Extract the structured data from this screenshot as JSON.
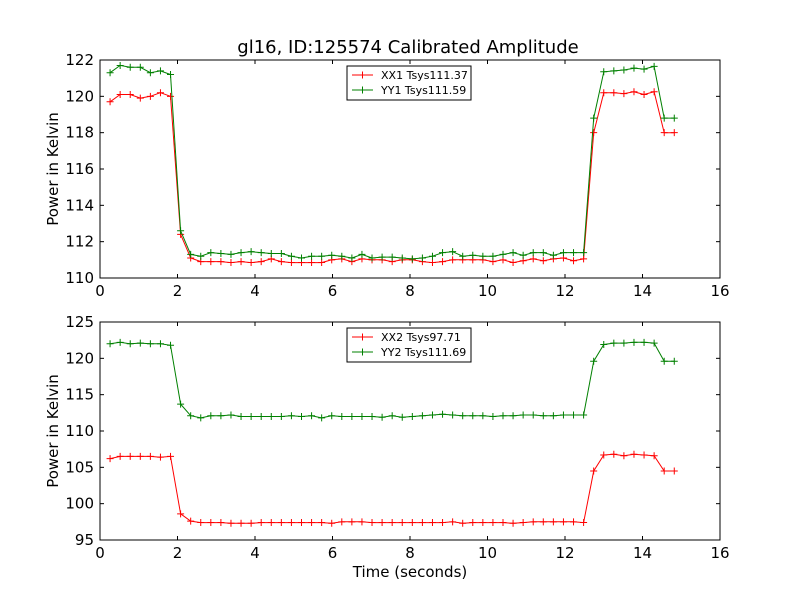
{
  "chart_data": [
    {
      "type": "line",
      "title": "gl16, ID:125574 Calibrated Amplitude",
      "xlabel": "",
      "ylabel": "Power in Kelvin",
      "xlim": [
        0,
        16
      ],
      "ylim": [
        110,
        122
      ],
      "xticks": [
        "0",
        "2",
        "4",
        "6",
        "8",
        "10",
        "12",
        "14",
        "16"
      ],
      "yticks": [
        "110",
        "112",
        "114",
        "116",
        "118",
        "120",
        "122"
      ],
      "legend_position": "upper center",
      "x": [
        0.26,
        0.52,
        0.78,
        1.04,
        1.3,
        1.56,
        1.82,
        2.08,
        2.34,
        2.6,
        2.86,
        3.12,
        3.38,
        3.64,
        3.9,
        4.16,
        4.42,
        4.68,
        4.94,
        5.2,
        5.46,
        5.72,
        5.98,
        6.24,
        6.5,
        6.76,
        7.02,
        7.28,
        7.54,
        7.8,
        8.06,
        8.32,
        8.58,
        8.84,
        9.1,
        9.36,
        9.62,
        9.88,
        10.14,
        10.4,
        10.66,
        10.92,
        11.18,
        11.44,
        11.7,
        11.96,
        12.22,
        12.48,
        12.74,
        13.0,
        13.26,
        13.52,
        13.78,
        14.04,
        14.3,
        14.56,
        14.82
      ],
      "series": [
        {
          "name": "XX1 Tsys111.37",
          "color": "#ff0000",
          "values": [
            119.7,
            120.1,
            120.1,
            119.9,
            120.0,
            120.2,
            120.0,
            112.4,
            111.1,
            110.9,
            110.9,
            110.9,
            110.85,
            110.9,
            110.85,
            110.9,
            111.05,
            110.9,
            110.85,
            110.85,
            110.85,
            110.85,
            111.0,
            111.05,
            110.9,
            111.05,
            111.0,
            111.0,
            110.9,
            111.0,
            111.0,
            110.9,
            110.85,
            110.9,
            111.0,
            111.0,
            111.0,
            111.0,
            110.9,
            111.0,
            110.85,
            110.95,
            111.05,
            110.95,
            111.05,
            111.1,
            110.95,
            111.05,
            118.0,
            120.2,
            120.2,
            120.15,
            120.25,
            120.1,
            120.25,
            118.0,
            118.0
          ],
          "marker": "+"
        },
        {
          "name": "YY1 Tsys111.59",
          "color": "#008000",
          "values": [
            121.3,
            121.7,
            121.6,
            121.6,
            121.3,
            121.4,
            121.2,
            112.6,
            111.3,
            111.2,
            111.4,
            111.35,
            111.3,
            111.4,
            111.45,
            111.4,
            111.35,
            111.35,
            111.2,
            111.1,
            111.2,
            111.2,
            111.25,
            111.2,
            111.1,
            111.3,
            111.1,
            111.15,
            111.15,
            111.1,
            111.05,
            111.1,
            111.2,
            111.4,
            111.45,
            111.2,
            111.25,
            111.2,
            111.2,
            111.3,
            111.4,
            111.25,
            111.4,
            111.4,
            111.25,
            111.4,
            111.4,
            111.4,
            118.8,
            121.35,
            121.4,
            121.45,
            121.55,
            121.5,
            121.65,
            118.8,
            118.8
          ],
          "marker": "+"
        }
      ]
    },
    {
      "type": "line",
      "title": "",
      "xlabel": "Time (seconds)",
      "ylabel": "Power in Kelvin",
      "xlim": [
        0,
        16
      ],
      "ylim": [
        95,
        125
      ],
      "xticks": [
        "0",
        "2",
        "4",
        "6",
        "8",
        "10",
        "12",
        "14",
        "16"
      ],
      "yticks": [
        "95",
        "100",
        "105",
        "110",
        "115",
        "120",
        "125"
      ],
      "legend_position": "upper center",
      "x": [
        0.26,
        0.52,
        0.78,
        1.04,
        1.3,
        1.56,
        1.82,
        2.08,
        2.34,
        2.6,
        2.86,
        3.12,
        3.38,
        3.64,
        3.9,
        4.16,
        4.42,
        4.68,
        4.94,
        5.2,
        5.46,
        5.72,
        5.98,
        6.24,
        6.5,
        6.76,
        7.02,
        7.28,
        7.54,
        7.8,
        8.06,
        8.32,
        8.58,
        8.84,
        9.1,
        9.36,
        9.62,
        9.88,
        10.14,
        10.4,
        10.66,
        10.92,
        11.18,
        11.44,
        11.7,
        11.96,
        12.22,
        12.48,
        12.74,
        13.0,
        13.26,
        13.52,
        13.78,
        14.04,
        14.3,
        14.56,
        14.82
      ],
      "series": [
        {
          "name": "XX2 Tsys97.71",
          "color": "#ff0000",
          "values": [
            106.2,
            106.5,
            106.5,
            106.5,
            106.5,
            106.4,
            106.5,
            98.6,
            97.6,
            97.4,
            97.4,
            97.4,
            97.3,
            97.3,
            97.3,
            97.4,
            97.4,
            97.4,
            97.4,
            97.4,
            97.4,
            97.4,
            97.3,
            97.5,
            97.5,
            97.5,
            97.4,
            97.4,
            97.4,
            97.4,
            97.4,
            97.4,
            97.4,
            97.4,
            97.5,
            97.3,
            97.4,
            97.4,
            97.4,
            97.4,
            97.3,
            97.4,
            97.5,
            97.5,
            97.5,
            97.5,
            97.5,
            97.4,
            104.5,
            106.7,
            106.8,
            106.6,
            106.8,
            106.7,
            106.6,
            104.5,
            104.5
          ],
          "marker": "+"
        },
        {
          "name": "YY2 Tsys111.69",
          "color": "#008000",
          "values": [
            122.0,
            122.2,
            122.0,
            122.1,
            122.0,
            122.0,
            121.8,
            113.7,
            112.1,
            111.8,
            112.1,
            112.1,
            112.2,
            112.0,
            112.0,
            112.0,
            112.0,
            112.0,
            112.1,
            112.0,
            112.1,
            111.8,
            112.1,
            112.0,
            112.0,
            112.0,
            112.0,
            111.9,
            112.1,
            111.9,
            112.0,
            112.1,
            112.2,
            112.3,
            112.2,
            112.1,
            112.1,
            112.1,
            112.0,
            112.1,
            112.1,
            112.2,
            112.2,
            112.1,
            112.1,
            112.2,
            112.2,
            112.2,
            119.6,
            121.9,
            122.1,
            122.1,
            122.2,
            122.2,
            122.1,
            119.6,
            119.6
          ],
          "marker": "+"
        }
      ]
    }
  ]
}
